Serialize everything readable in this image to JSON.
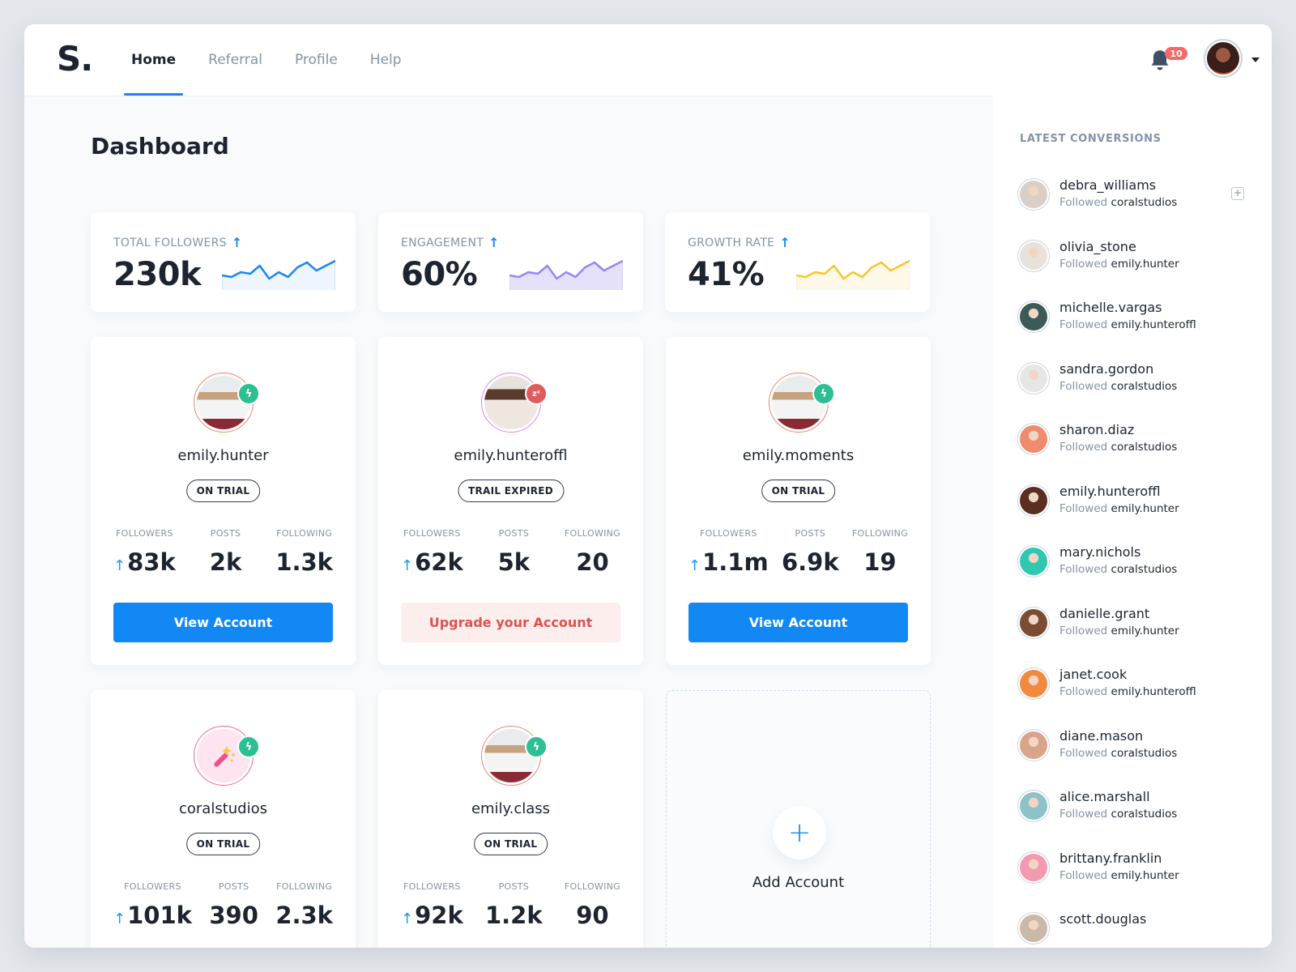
{
  "app": {
    "logo": "S.",
    "nav": [
      {
        "label": "Home",
        "active": true
      },
      {
        "label": "Referral",
        "active": false
      },
      {
        "label": "Profile",
        "active": false
      },
      {
        "label": "Help",
        "active": false
      }
    ],
    "notifications_count": "10"
  },
  "page": {
    "title": "Dashboard"
  },
  "stats": [
    {
      "label": "TOTAL FOLLOWERS",
      "value": "230k",
      "trend": "up",
      "color": "#1a86f0",
      "fill": "#eef5fd"
    },
    {
      "label": "ENGAGEMENT",
      "value": "60%",
      "trend": "up",
      "color": "#9a85f2",
      "fill": "#e6e1fb"
    },
    {
      "label": "GROWTH RATE",
      "value": "41%",
      "trend": "up",
      "color": "#f5c728",
      "fill": "#fef8e8"
    }
  ],
  "chart_data": [
    {
      "type": "area",
      "title": "TOTAL FOLLOWERS",
      "values": [
        6,
        5,
        8,
        7,
        12,
        4,
        8,
        5,
        11,
        14,
        9,
        12,
        15
      ],
      "note": "sparkline, no axes"
    },
    {
      "type": "area",
      "title": "ENGAGEMENT",
      "values": [
        6,
        5,
        8,
        7,
        12,
        4,
        8,
        5,
        11,
        14,
        9,
        12,
        15
      ],
      "note": "sparkline, no axes"
    },
    {
      "type": "area",
      "title": "GROWTH RATE",
      "values": [
        6,
        5,
        8,
        7,
        12,
        4,
        8,
        5,
        11,
        14,
        9,
        12,
        15
      ],
      "note": "sparkline, no axes"
    }
  ],
  "accounts": [
    {
      "name": "emily.hunter",
      "status": "ON TRIAL",
      "state": "active",
      "followers": "83k",
      "posts": "2k",
      "following": "1.3k",
      "button": "View Account",
      "button_type": "primary"
    },
    {
      "name": "emily.hunteroffl",
      "status": "TRAIL EXPIRED",
      "state": "sleep",
      "followers": "62k",
      "posts": "5k",
      "following": "20",
      "button": "Upgrade your Account",
      "button_type": "upgrade"
    },
    {
      "name": "emily.moments",
      "status": "ON TRIAL",
      "state": "active",
      "followers": "1.1m",
      "posts": "6.9k",
      "following": "19",
      "button": "View Account",
      "button_type": "primary"
    },
    {
      "name": "coralstudios",
      "status": "ON TRIAL",
      "state": "active",
      "followers": "101k",
      "posts": "390",
      "following": "2.3k"
    },
    {
      "name": "emily.class",
      "status": "ON TRIAL",
      "state": "active",
      "followers": "92k",
      "posts": "1.2k",
      "following": "90"
    }
  ],
  "stat_labels": {
    "followers": "FOLLOWERS",
    "posts": "POSTS",
    "following": "FOLLOWING"
  },
  "add_account": {
    "label": "Add Account"
  },
  "sidebar": {
    "title": "LATEST CONVERSIONS",
    "verb": "Followed",
    "items": [
      {
        "name": "debra_williams",
        "target": "coralstudios",
        "color": "#d9cfc6"
      },
      {
        "name": "olivia_stone",
        "target": "emily.hunter",
        "color": "#e8e2da"
      },
      {
        "name": "michelle.vargas",
        "target": "emily.hunteroffl",
        "color": "#3c5a58"
      },
      {
        "name": "sandra.gordon",
        "target": "coralstudios",
        "color": "#e6e6e4"
      },
      {
        "name": "sharon.diaz",
        "target": "coralstudios",
        "color": "#ef8b6e"
      },
      {
        "name": "emily.hunteroffl",
        "target": "emily.hunter",
        "color": "#5a2f22"
      },
      {
        "name": "mary.nichols",
        "target": "coralstudios",
        "color": "#2ec7b0"
      },
      {
        "name": "danielle.grant",
        "target": "emily.hunter",
        "color": "#7a4d33"
      },
      {
        "name": "janet.cook",
        "target": "emily.hunteroffl",
        "color": "#f28a3e"
      },
      {
        "name": "diane.mason",
        "target": "coralstudios",
        "color": "#d9a58a"
      },
      {
        "name": "alice.marshall",
        "target": "coralstudios",
        "color": "#8fc2c8"
      },
      {
        "name": "brittany.franklin",
        "target": "emily.hunter",
        "color": "#f39ab0"
      },
      {
        "name": "scott.douglas",
        "target": "",
        "color": "#c9b9a6"
      }
    ]
  }
}
